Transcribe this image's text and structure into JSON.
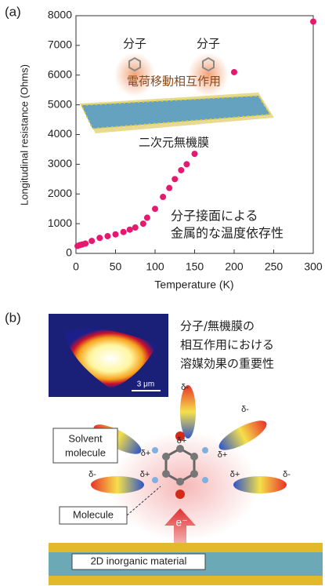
{
  "chart_data": {
    "type": "scatter",
    "panel_label": "(a)",
    "xlabel": "Temperature (K)",
    "ylabel": "Longitudinal resistance (Ohms)",
    "x": [
      2,
      5,
      8,
      12,
      20,
      30,
      40,
      50,
      60,
      68,
      75,
      85,
      90,
      100,
      110,
      118,
      125,
      133,
      140,
      150,
      200,
      300
    ],
    "values": [
      250,
      280,
      300,
      330,
      420,
      520,
      580,
      640,
      720,
      800,
      870,
      1000,
      1200,
      1500,
      1900,
      2200,
      2500,
      2800,
      3000,
      3350,
      6100,
      7800
    ],
    "color": "#e6186f",
    "xlim": [
      0,
      300
    ],
    "xticks": [
      0,
      50,
      100,
      150,
      200,
      250,
      300
    ],
    "ylim": [
      0,
      8000
    ],
    "yticks": [
      0,
      1000,
      2000,
      3000,
      4000,
      5000,
      6000,
      7000,
      8000
    ],
    "grid": false,
    "annotations": [
      "分子",
      "分子",
      "電荷移動相互作用",
      "二次元無機膜",
      "分子接面による",
      "金属的な温度依存性"
    ]
  },
  "diagram": {
    "panel_label": "(b)",
    "caption": [
      "分子/無機膜の",
      "相互作用における",
      "溶媒効果の重要性"
    ],
    "scale_bar": "3 μm",
    "solvent_label": [
      "Solvent",
      "molecule"
    ],
    "molecule_label": "Molecule",
    "electron": "e⁻",
    "material_label": "2D inorganic material",
    "charges": [
      "δ-",
      "δ+",
      "δ-",
      "δ+",
      "δ+",
      "δ-",
      "δ+",
      "δ+",
      "δ-"
    ]
  }
}
